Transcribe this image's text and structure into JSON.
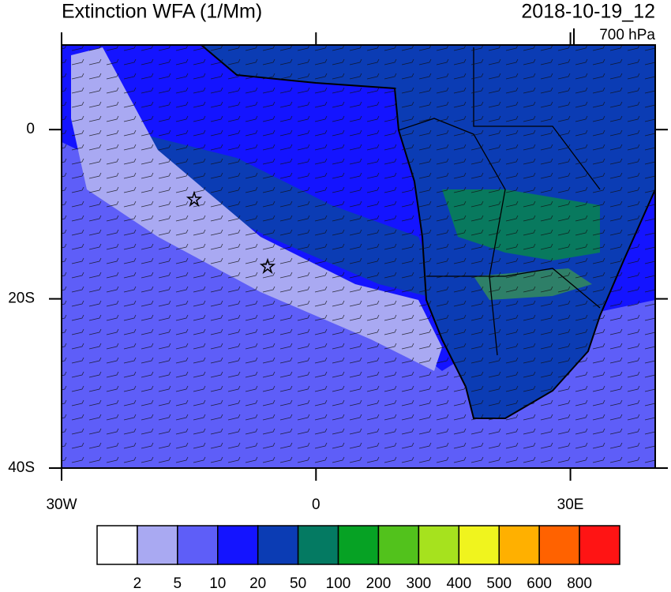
{
  "header": {
    "title": "Extinction WFA (1/Mm)",
    "time": "2018-10-19_12",
    "level": "700 hPa"
  },
  "map": {
    "lon_range": [
      -30,
      40
    ],
    "lat_range": [
      10,
      -40
    ],
    "lat_ticks": [
      {
        "value": 0,
        "label": "0"
      },
      {
        "value": -20,
        "label": "20S"
      },
      {
        "value": -40,
        "label": "40S"
      }
    ],
    "lon_ticks": [
      {
        "value": -30,
        "label": "30W"
      },
      {
        "value": 0,
        "label": "0"
      },
      {
        "value": 30,
        "label": "30E"
      }
    ]
  },
  "colorbar": {
    "colors": [
      "#ffffff",
      "#a9a9f2",
      "#5e5ef8",
      "#1414ff",
      "#0b3cb4",
      "#047a62",
      "#06a224",
      "#52c21c",
      "#a6e21e",
      "#f0f41e",
      "#ffb000",
      "#ff6200",
      "#ff1414"
    ],
    "labels": [
      2,
      5,
      10,
      20,
      50,
      100,
      200,
      300,
      400,
      500,
      600,
      800
    ]
  }
}
